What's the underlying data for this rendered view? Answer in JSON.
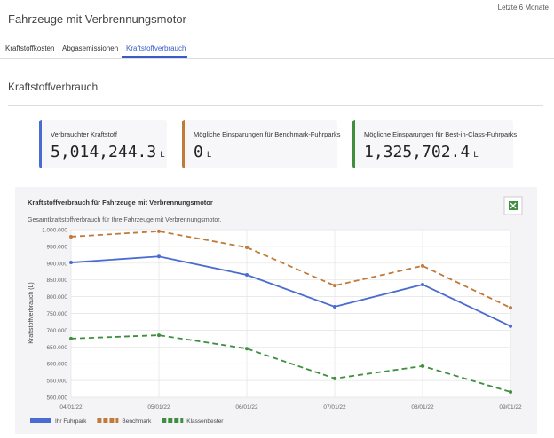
{
  "header": {
    "title": "Fahrzeuge mit Verbrennungsmotor",
    "period": "Letzte 6 Monate"
  },
  "tabs": [
    "Kraftstoffkosten",
    "Abgasemissionen",
    "Kraftstoffverbrauch"
  ],
  "section_title": "Kraftstoffverbrauch",
  "kpis": [
    {
      "label": "Verbrauchter Kraftstoff",
      "value": "5,014,244.3",
      "unit": "L",
      "color": "#4a6bd0"
    },
    {
      "label": "Mögliche Einsparungen für Benchmark-Fuhrparks",
      "value": "0",
      "unit": "L",
      "color": "#c07a3a"
    },
    {
      "label": "Mögliche Einsparungen für Best-in-Class-Fuhrparks",
      "value": "1,325,702.4",
      "unit": "L",
      "color": "#3f8f3f"
    }
  ],
  "chart_data": {
    "type": "line",
    "title": "Kraftstoffverbrauch für Fahrzeuge mit Verbrennungsmotor",
    "subtitle": "Gesamtkraftstoffverbrauch für Ihre Fahrzeuge mit Verbrennungsmotor.",
    "ylabel": "Kraftstoffverbrauch (L)",
    "categories": [
      "04/01/22",
      "05/01/22",
      "06/01/22",
      "07/01/22",
      "08/01/22",
      "09/01/22"
    ],
    "series": [
      {
        "name": "Ihr Fuhrpark",
        "color": "#4a6bd0",
        "dashed": false,
        "values": [
          902000,
          920000,
          865000,
          770000,
          836000,
          712000
        ]
      },
      {
        "name": "Benchmark",
        "color": "#c07a3a",
        "dashed": true,
        "values": [
          979000,
          995000,
          947000,
          833000,
          892000,
          767000
        ]
      },
      {
        "name": "Klassenbester",
        "color": "#3f8f3f",
        "dashed": true,
        "values": [
          675000,
          685000,
          645000,
          556000,
          593000,
          516000
        ]
      }
    ],
    "ylim": [
      500000,
      1000000
    ],
    "yticks": [
      {
        "value": 500000,
        "label": "500.000"
      },
      {
        "value": 550000,
        "label": "550.000"
      },
      {
        "value": 600000,
        "label": "600.000"
      },
      {
        "value": 650000,
        "label": "650.000"
      },
      {
        "value": 700000,
        "label": "700.000"
      },
      {
        "value": 750000,
        "label": "750.000"
      },
      {
        "value": 800000,
        "label": "800.000"
      },
      {
        "value": 850000,
        "label": "850.000"
      },
      {
        "value": 900000,
        "label": "900.000"
      },
      {
        "value": 950000,
        "label": "950.000"
      },
      {
        "value": 1000000,
        "label": "1.000.000"
      }
    ],
    "grid": true
  }
}
